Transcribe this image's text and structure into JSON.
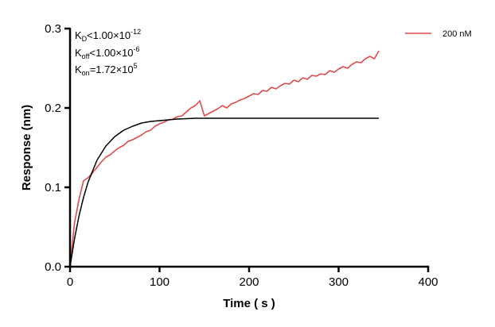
{
  "chart_data": {
    "type": "line",
    "title": "",
    "xlabel": "Time ( s )",
    "ylabel": "Response (nm)",
    "xlim": [
      0,
      400
    ],
    "ylim": [
      0,
      0.3
    ],
    "xticks": [
      "0",
      "100",
      "200",
      "300",
      "400"
    ],
    "yticks": [
      "0.0",
      "0.1",
      "0.2",
      "0.3"
    ],
    "grid": false,
    "legend_position": "top-right",
    "annotations": {
      "kd": {
        "sym": "K",
        "sub": "D",
        "rel": "<1.00×10",
        "exp": "-12"
      },
      "koff": {
        "sym": "K",
        "sub": "off",
        "rel": "<1.00×10",
        "exp": "-6"
      },
      "kon": {
        "sym": "K",
        "sub": "on",
        "rel": "=1.72×10",
        "exp": "5"
      }
    },
    "series": [
      {
        "name": "200 nM",
        "color": "#e04b4b",
        "x": [
          0,
          5,
          10,
          15,
          20,
          25,
          30,
          35,
          40,
          45,
          50,
          55,
          60,
          65,
          70,
          75,
          80,
          85,
          90,
          95,
          100,
          105,
          110,
          115,
          120,
          125,
          130,
          135,
          140,
          145,
          150,
          155,
          160,
          165,
          170,
          175,
          180,
          185,
          190,
          195,
          200,
          205,
          210,
          215,
          220,
          225,
          230,
          235,
          240,
          245,
          250,
          255,
          260,
          265,
          270,
          275,
          280,
          285,
          290,
          295,
          300,
          305,
          310,
          315,
          320,
          325,
          330,
          335,
          340,
          345
        ],
        "y": [
          0,
          0.055,
          0.085,
          0.108,
          0.112,
          0.118,
          0.125,
          0.132,
          0.138,
          0.141,
          0.146,
          0.15,
          0.153,
          0.158,
          0.16,
          0.163,
          0.166,
          0.17,
          0.172,
          0.177,
          0.18,
          0.182,
          0.185,
          0.186,
          0.189,
          0.19,
          0.195,
          0.2,
          0.203,
          0.209,
          0.19,
          0.193,
          0.196,
          0.199,
          0.203,
          0.2,
          0.205,
          0.207,
          0.21,
          0.212,
          0.215,
          0.218,
          0.217,
          0.222,
          0.221,
          0.226,
          0.224,
          0.228,
          0.231,
          0.23,
          0.235,
          0.233,
          0.238,
          0.236,
          0.241,
          0.24,
          0.243,
          0.242,
          0.247,
          0.245,
          0.249,
          0.252,
          0.25,
          0.255,
          0.258,
          0.257,
          0.262,
          0.265,
          0.262,
          0.272
        ]
      },
      {
        "color": "#000000",
        "x": [
          0,
          5,
          10,
          15,
          20,
          30,
          40,
          50,
          60,
          70,
          80,
          90,
          100,
          120,
          140,
          345
        ],
        "y": [
          0,
          0.035,
          0.064,
          0.087,
          0.106,
          0.134,
          0.152,
          0.164,
          0.172,
          0.177,
          0.181,
          0.183,
          0.184,
          0.186,
          0.187,
          0.187
        ]
      }
    ]
  }
}
